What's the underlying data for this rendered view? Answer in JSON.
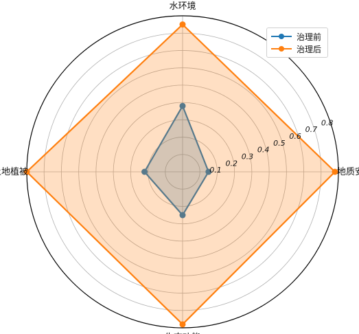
{
  "chart_data": {
    "type": "radar",
    "categories": [
      "水环境",
      "地质安全",
      "生态功能",
      "土地植被"
    ],
    "series": [
      {
        "name": "治理前",
        "values": [
          0.38,
          0.15,
          0.25,
          0.22
        ],
        "color": "#1f77b4"
      },
      {
        "name": "治理后",
        "values": [
          0.85,
          0.88,
          0.88,
          0.9
        ],
        "color": "#ff7f0e"
      }
    ],
    "rlim": [
      0,
      0.9
    ],
    "rticks": [
      "0.1",
      "0.2",
      "0.3",
      "0.4",
      "0.5",
      "0.6",
      "0.7",
      "0.8"
    ],
    "rtick_values": [
      0.1,
      0.2,
      0.3,
      0.4,
      0.5,
      0.6,
      0.7,
      0.8
    ],
    "grid": true,
    "legend_position": "top-right"
  }
}
